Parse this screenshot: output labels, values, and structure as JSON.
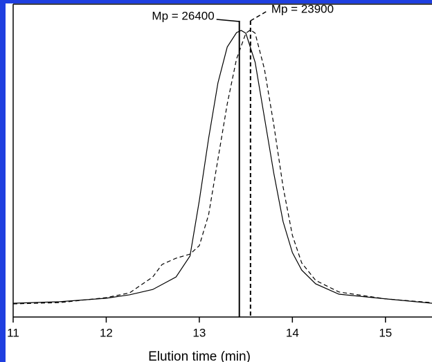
{
  "chart_data": {
    "type": "line",
    "x_label": "Elution time (min)",
    "xlim": [
      11,
      15.5
    ],
    "xticks": [
      11,
      12,
      13,
      14,
      15
    ],
    "ylim": [
      0,
      1
    ],
    "series": [
      {
        "style": "solid",
        "color": "#000000",
        "x": [
          11,
          11.5,
          12,
          12.25,
          12.5,
          12.75,
          12.9,
          13.0,
          13.1,
          13.2,
          13.3,
          13.4,
          13.45,
          13.5,
          13.6,
          13.7,
          13.8,
          13.9,
          14.0,
          14.1,
          14.25,
          14.5,
          15,
          15.5
        ],
        "values": [
          0.044,
          0.049,
          0.06,
          0.071,
          0.088,
          0.128,
          0.195,
          0.372,
          0.571,
          0.748,
          0.863,
          0.909,
          0.916,
          0.907,
          0.814,
          0.637,
          0.46,
          0.305,
          0.206,
          0.15,
          0.106,
          0.073,
          0.058,
          0.044
        ]
      },
      {
        "style": "dashed",
        "color": "#000000",
        "x": [
          11,
          11.5,
          12,
          12.25,
          12.5,
          12.6,
          12.75,
          12.9,
          13.0,
          13.1,
          13.2,
          13.3,
          13.4,
          13.5,
          13.55,
          13.6,
          13.7,
          13.8,
          13.9,
          14.0,
          14.1,
          14.25,
          14.5,
          15,
          15.5
        ],
        "values": [
          0.042,
          0.046,
          0.062,
          0.077,
          0.128,
          0.168,
          0.188,
          0.201,
          0.228,
          0.327,
          0.504,
          0.681,
          0.825,
          0.907,
          0.918,
          0.907,
          0.792,
          0.615,
          0.416,
          0.261,
          0.173,
          0.117,
          0.08,
          0.058,
          0.046
        ]
      }
    ],
    "annotations": [
      {
        "text": "Mp = 26400",
        "x": 13.43,
        "style": "solid"
      },
      {
        "text": "Mp = 23900",
        "x": 13.55,
        "style": "dashed"
      }
    ]
  }
}
